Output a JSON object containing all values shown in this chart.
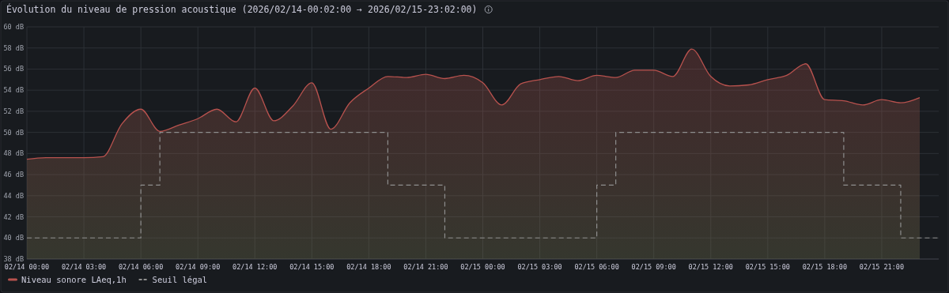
{
  "chart_data": {
    "type": "area",
    "title": "Évolution du niveau de pression acoustique (2026/02/14-00:02:00 → 2026/02/15-23:02:00)",
    "x": [
      "2026-02-14T00:00",
      "2026-02-14T01:00",
      "2026-02-14T02:00",
      "2026-02-14T03:00",
      "2026-02-14T04:00",
      "2026-02-14T05:00",
      "2026-02-14T06:00",
      "2026-02-14T07:00",
      "2026-02-14T08:00",
      "2026-02-14T09:00",
      "2026-02-14T10:00",
      "2026-02-14T11:00",
      "2026-02-14T12:00",
      "2026-02-14T13:00",
      "2026-02-14T14:00",
      "2026-02-14T15:00",
      "2026-02-14T16:00",
      "2026-02-14T17:00",
      "2026-02-14T18:00",
      "2026-02-14T19:00",
      "2026-02-14T20:00",
      "2026-02-14T21:00",
      "2026-02-14T22:00",
      "2026-02-14T23:00",
      "2026-02-15T00:00",
      "2026-02-15T01:00",
      "2026-02-15T02:00",
      "2026-02-15T03:00",
      "2026-02-15T04:00",
      "2026-02-15T05:00",
      "2026-02-15T06:00",
      "2026-02-15T07:00",
      "2026-02-15T08:00",
      "2026-02-15T09:00",
      "2026-02-15T10:00",
      "2026-02-15T11:00",
      "2026-02-15T12:00",
      "2026-02-15T13:00",
      "2026-02-15T14:00",
      "2026-02-15T15:00",
      "2026-02-15T16:00",
      "2026-02-15T17:00",
      "2026-02-15T18:00",
      "2026-02-15T19:00",
      "2026-02-15T20:00",
      "2026-02-15T21:00",
      "2026-02-15T22:00",
      "2026-02-15T23:00"
    ],
    "series": [
      {
        "name": "Niveau sonore LAeq,1h",
        "color": "#b8524e",
        "values": [
          47.45,
          47.6,
          47.6,
          47.6,
          47.7,
          50.8,
          52.2,
          50.1,
          50.7,
          51.3,
          52.2,
          51.0,
          54.2,
          51.1,
          52.5,
          54.7,
          50.3,
          52.8,
          54.2,
          55.3,
          55.2,
          55.5,
          55.1,
          55.4,
          54.7,
          52.6,
          54.6,
          55.0,
          55.3,
          54.9,
          55.4,
          55.2,
          55.9,
          55.9,
          55.3,
          57.9,
          55.3,
          54.4,
          54.5,
          55.0,
          55.4,
          56.5,
          53.1,
          53.0,
          52.6,
          53.1,
          52.8,
          53.3
        ]
      },
      {
        "name": "Seuil légal",
        "type": "step",
        "color": "#8e8e8e",
        "line_style": "dashed",
        "x": [
          "2026-02-14T00:00",
          "2026-02-14T06:00",
          "2026-02-14T07:00",
          "2026-02-14T19:00",
          "2026-02-14T22:00",
          "2026-02-15T06:00",
          "2026-02-15T07:00",
          "2026-02-15T19:00",
          "2026-02-15T22:00",
          "2026-02-16T00:00"
        ],
        "values": [
          40,
          45,
          50,
          45,
          40,
          45,
          50,
          45,
          40,
          40
        ]
      }
    ],
    "xlim": [
      "2026-02-14T00:00",
      "2026-02-16T00:00"
    ],
    "xticks": [
      {
        "value": "2026-02-14T00:00",
        "label": "02/14 00:00"
      },
      {
        "value": "2026-02-14T03:00",
        "label": "02/14 03:00"
      },
      {
        "value": "2026-02-14T06:00",
        "label": "02/14 06:00"
      },
      {
        "value": "2026-02-14T09:00",
        "label": "02/14 09:00"
      },
      {
        "value": "2026-02-14T12:00",
        "label": "02/14 12:00"
      },
      {
        "value": "2026-02-14T15:00",
        "label": "02/14 15:00"
      },
      {
        "value": "2026-02-14T18:00",
        "label": "02/14 18:00"
      },
      {
        "value": "2026-02-14T21:00",
        "label": "02/14 21:00"
      },
      {
        "value": "2026-02-15T00:00",
        "label": "02/15 00:00"
      },
      {
        "value": "2026-02-15T03:00",
        "label": "02/15 03:00"
      },
      {
        "value": "2026-02-15T06:00",
        "label": "02/15 06:00"
      },
      {
        "value": "2026-02-15T09:00",
        "label": "02/15 09:00"
      },
      {
        "value": "2026-02-15T12:00",
        "label": "02/15 12:00"
      },
      {
        "value": "2026-02-15T15:00",
        "label": "02/15 15:00"
      },
      {
        "value": "2026-02-15T18:00",
        "label": "02/15 18:00"
      },
      {
        "value": "2026-02-15T21:00",
        "label": "02/15 21:00"
      }
    ],
    "ylim": [
      38,
      60
    ],
    "yticks": [
      {
        "value": 38,
        "label": "38 dB"
      },
      {
        "value": 40,
        "label": "40 dB"
      },
      {
        "value": 42,
        "label": "42 dB"
      },
      {
        "value": 44,
        "label": "44 dB"
      },
      {
        "value": 46,
        "label": "46 dB"
      },
      {
        "value": 48,
        "label": "48 dB"
      },
      {
        "value": 50,
        "label": "50 dB"
      },
      {
        "value": 52,
        "label": "52 dB"
      },
      {
        "value": 54,
        "label": "54 dB"
      },
      {
        "value": 56,
        "label": "56 dB"
      },
      {
        "value": 58,
        "label": "58 dB"
      },
      {
        "value": 60,
        "label": "60 dB"
      }
    ],
    "grid": true,
    "legend": "bottom left"
  }
}
